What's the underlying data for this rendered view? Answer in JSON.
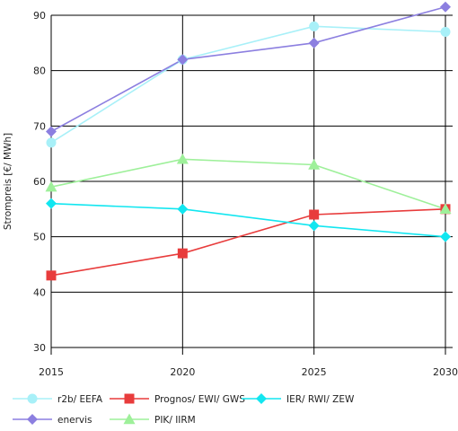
{
  "chart_data": {
    "type": "line",
    "title": "",
    "xlabel": "",
    "ylabel": "Strompreis [€/ MWh]",
    "x": [
      2015,
      2020,
      2025,
      2030
    ],
    "x_tick_labels": [
      "2015",
      "2020",
      "2025",
      "2030"
    ],
    "ylim": [
      30,
      90
    ],
    "y_ticks": [
      30,
      40,
      50,
      60,
      70,
      80,
      90
    ],
    "y_tick_labels": [
      "30",
      "40",
      "50",
      "60",
      "70",
      "80",
      "90"
    ],
    "grid": "horizontal",
    "legend_position": "bottom",
    "series": [
      {
        "name": "r2b/ EEFA",
        "values": [
          67,
          82,
          88,
          87
        ],
        "color": "#a8f0f8",
        "marker": "circle"
      },
      {
        "name": "Prognos/ EWI/ GWS",
        "values": [
          43,
          47,
          54,
          55
        ],
        "color": "#e83c3c",
        "marker": "square"
      },
      {
        "name": "IER/ RWI/ ZEW",
        "values": [
          56,
          55,
          52,
          50
        ],
        "color": "#12e6f0",
        "marker": "diamond"
      },
      {
        "name": "enervis",
        "values": [
          69,
          82,
          85,
          91.5
        ],
        "color": "#8c7fe0",
        "marker": "diamond"
      },
      {
        "name": "PIK/ IIRM",
        "values": [
          59,
          64,
          63,
          55
        ],
        "color": "#9ef09a",
        "marker": "triangle"
      }
    ]
  }
}
